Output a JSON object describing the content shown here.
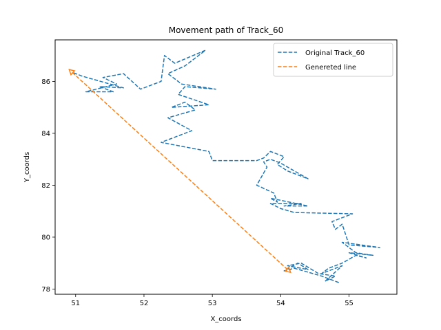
{
  "chart_data": {
    "type": "line",
    "title": "Movement path of Track_60",
    "xlabel": "X_coords",
    "ylabel": "Y_coords",
    "xlim": [
      50.7,
      55.7
    ],
    "ylim": [
      77.8,
      87.6
    ],
    "xticks": [
      51,
      52,
      53,
      54,
      55
    ],
    "yticks": [
      78,
      80,
      82,
      84,
      86
    ],
    "grid": false,
    "legend_position": "top-right",
    "series": [
      {
        "name": "Original Track_60",
        "color": "#1f77b4",
        "style": "dashed",
        "x": [
          54.85,
          54.6,
          54.2,
          54.05,
          54.25,
          54.4,
          54.1,
          54.3,
          54.55,
          54.8,
          54.65,
          54.9,
          54.6,
          54.7,
          54.9,
          55.1,
          55.25,
          55.0,
          55.35,
          55.1,
          54.9,
          55.45,
          55.0,
          54.9,
          54.8,
          54.75,
          55.05,
          54.2,
          54.0,
          53.85,
          54.3,
          54.05,
          54.4,
          53.85,
          53.95,
          53.9,
          53.65,
          53.8,
          53.75,
          53.85,
          54.0,
          54.4,
          54.1,
          53.95,
          54.05,
          53.85,
          53.75,
          53.65,
          53.0,
          52.95,
          52.25,
          52.7,
          52.35,
          52.75,
          52.6,
          52.4,
          52.95,
          52.5,
          52.6,
          53.05,
          52.55,
          52.35,
          52.6,
          52.9,
          52.45,
          52.3,
          52.25,
          51.95,
          51.7,
          51.4,
          51.6,
          51.15,
          51.55,
          51.35,
          51.7,
          51.1,
          50.95
        ],
        "y": [
          78.25,
          78.5,
          78.8,
          78.7,
          79.0,
          78.75,
          78.9,
          79.0,
          78.6,
          78.5,
          78.3,
          78.9,
          78.6,
          78.8,
          79.0,
          79.3,
          79.2,
          79.4,
          79.3,
          79.4,
          79.8,
          79.6,
          79.7,
          80.5,
          80.3,
          80.6,
          80.9,
          80.95,
          81.1,
          81.3,
          81.3,
          81.2,
          81.2,
          81.5,
          81.35,
          81.7,
          82.0,
          82.7,
          82.9,
          83.0,
          82.85,
          82.25,
          82.55,
          82.8,
          83.1,
          83.3,
          83.05,
          82.95,
          82.95,
          83.3,
          83.65,
          84.1,
          84.6,
          84.9,
          85.2,
          85.0,
          85.1,
          85.5,
          85.8,
          85.7,
          85.9,
          86.3,
          86.6,
          87.2,
          86.7,
          87.0,
          86.0,
          85.7,
          86.3,
          86.15,
          85.9,
          85.6,
          85.6,
          85.8,
          85.75,
          86.2,
          86.35
        ]
      },
      {
        "name": "Genereted line",
        "color": "#ff7f0e",
        "style": "dashed",
        "x": [
          50.95,
          54.1
        ],
        "y": [
          86.35,
          78.75
        ]
      }
    ]
  }
}
